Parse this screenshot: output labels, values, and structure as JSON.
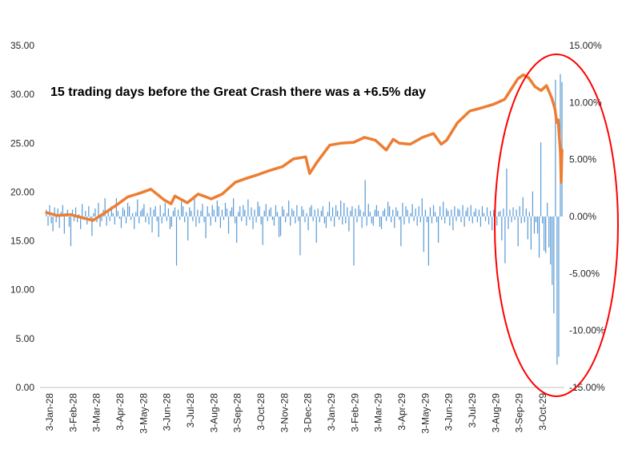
{
  "chart_data": {
    "type": "line",
    "title": "",
    "annotation": "15 trading days before the Great Crash there was a +6.5% day",
    "xlabel": "",
    "x_tick_labels": [
      "3-Jan-28",
      "3-Feb-28",
      "3-Mar-28",
      "3-Apr-28",
      "3-May-28",
      "3-Jun-28",
      "3-Jul-28",
      "3-Aug-28",
      "3-Sep-28",
      "3-Oct-28",
      "3-Nov-28",
      "3-Dec-28",
      "3-Jan-29",
      "3-Feb-29",
      "3-Mar-29",
      "3-Apr-29",
      "3-May-29",
      "3-Jun-29",
      "3-Jul-29",
      "3-Aug-29",
      "3-Sep-29",
      "3-Oct-29"
    ],
    "y_left": {
      "label": "",
      "lim": [
        0,
        35
      ],
      "tick_labels": [
        "0.00",
        "5.00",
        "10.00",
        "15.00",
        "20.00",
        "25.00",
        "30.00",
        "35.00"
      ]
    },
    "y_right": {
      "label": "",
      "lim": [
        -15,
        15
      ],
      "unit": "%",
      "tick_labels": [
        "-15.00%",
        "-10.00%",
        "-5.00%",
        "0.00%",
        "5.00%",
        "10.00%",
        "15.00%"
      ]
    },
    "grid": false,
    "legend": "none",
    "series": [
      {
        "axis": "left",
        "render": "line",
        "color": "#ED7D31",
        "x": [
          "1928-01-03",
          "1928-01-17",
          "1928-02-03",
          "1928-02-17",
          "1928-03-03",
          "1928-03-17",
          "1928-04-03",
          "1928-04-17",
          "1928-05-03",
          "1928-05-17",
          "1928-06-03",
          "1928-06-12",
          "1928-06-17",
          "1928-07-03",
          "1928-07-17",
          "1928-08-03",
          "1928-08-17",
          "1928-09-03",
          "1928-09-17",
          "1928-10-03",
          "1928-10-17",
          "1928-11-03",
          "1928-11-17",
          "1928-12-03",
          "1928-12-08",
          "1928-12-17",
          "1929-01-03",
          "1929-01-17",
          "1929-02-03",
          "1929-02-17",
          "1929-03-03",
          "1929-03-17",
          "1929-03-26",
          "1929-04-03",
          "1929-04-17",
          "1929-05-03",
          "1929-05-17",
          "1929-05-27",
          "1929-06-03",
          "1929-06-17",
          "1929-07-03",
          "1929-07-17",
          "1929-08-03",
          "1929-08-17",
          "1929-09-03",
          "1929-09-10",
          "1929-09-17",
          "1929-09-25",
          "1929-10-03",
          "1929-10-10",
          "1929-10-17",
          "1929-10-21",
          "1929-10-23",
          "1929-10-24",
          "1929-10-25",
          "1929-10-28",
          "1929-10-29",
          "1929-10-30"
        ],
        "y": [
          17.9,
          17.6,
          17.7,
          17.4,
          17.1,
          17.8,
          18.7,
          19.5,
          19.9,
          20.3,
          19.2,
          18.8,
          19.6,
          18.9,
          19.8,
          19.3,
          19.8,
          21.0,
          21.4,
          21.8,
          22.2,
          22.6,
          23.4,
          23.6,
          21.9,
          23.0,
          24.8,
          25.0,
          25.1,
          25.6,
          25.3,
          24.3,
          25.4,
          25.0,
          24.9,
          25.6,
          26.0,
          24.9,
          25.3,
          27.1,
          28.3,
          28.6,
          29.0,
          29.5,
          31.6,
          32.0,
          31.7,
          30.8,
          30.4,
          30.9,
          29.6,
          28.5,
          27.3,
          27.1,
          27.4,
          24.0,
          21.0,
          24.3
        ]
      },
      {
        "axis": "right",
        "render": "bar",
        "color": "#5B9BD5",
        "unit": "%",
        "values": [
          0.6,
          -0.8,
          1.0,
          -0.6,
          -1.3,
          0.8,
          -0.5,
          0.7,
          -1.0,
          0.4,
          1.0,
          -1.5,
          0.3,
          0.6,
          -0.9,
          -2.6,
          0.6,
          -0.4,
          0.8,
          -0.5,
          0.2,
          -1.1,
          1.1,
          -0.3,
          0.5,
          -0.7,
          0.9,
          -0.3,
          -1.7,
          0.3,
          0.7,
          -0.5,
          1.2,
          -0.9,
          -0.4,
          0.6,
          1.6,
          -0.8,
          0.4,
          -0.4,
          0.9,
          0.3,
          -0.7,
          1.6,
          0.5,
          -0.2,
          -1.0,
          0.8,
          0.6,
          -0.6,
          1.2,
          0.9,
          -0.3,
          0.3,
          -1.1,
          0.4,
          1.5,
          -0.6,
          0.5,
          0.7,
          1.1,
          -0.5,
          0.3,
          -0.7,
          0.8,
          -1.4,
          0.6,
          0.9,
          -0.4,
          -1.8,
          1.0,
          -0.6,
          0.3,
          1.2,
          -0.4,
          0.7,
          -1.1,
          -0.9,
          0.5,
          0.8,
          -4.3,
          0.6,
          -0.3,
          1.3,
          0.9,
          -0.5,
          0.4,
          -2.1,
          0.8,
          0.5,
          -0.4,
          1.7,
          -0.9,
          0.6,
          -0.6,
          0.5,
          1.1,
          -0.5,
          -1.9,
          0.9,
          0.3,
          -0.8,
          1.0,
          0.6,
          -0.5,
          1.4,
          0.9,
          -1.0,
          0.6,
          -0.3,
          1.2,
          0.7,
          -1.5,
          0.5,
          0.8,
          1.6,
          -0.6,
          -2.3,
          0.4,
          0.9,
          -0.4,
          1.0,
          0.6,
          -0.8,
          1.5,
          -0.3,
          0.8,
          -1.1,
          0.6,
          -0.5,
          1.3,
          0.9,
          -0.7,
          -2.5,
          0.5,
          1.1,
          -0.4,
          0.6,
          0.8,
          -0.3,
          -0.8,
          1.0,
          0.4,
          -1.8,
          -1.7,
          0.9,
          0.6,
          -0.5,
          0.3,
          1.4,
          -0.8,
          0.7,
          0.5,
          -0.6,
          1.0,
          -0.4,
          -3.4,
          0.9,
          0.6,
          -0.5,
          0.3,
          -1.2,
          0.8,
          1.0,
          -0.4,
          0.6,
          -2.3,
          0.7,
          -0.5,
          0.5,
          0.9,
          -0.6,
          -1.0,
          0.4,
          1.3,
          -0.4,
          0.8,
          -0.9,
          1.0,
          0.5,
          -0.3,
          1.4,
          -0.7,
          1.2,
          -0.6,
          0.8,
          -1.3,
          0.5,
          0.9,
          -4.3,
          0.7,
          -0.5,
          1.0,
          0.6,
          -1.0,
          0.4,
          3.2,
          -0.8,
          1.1,
          0.4,
          -0.6,
          -0.8,
          0.6,
          1.0,
          0.5,
          -0.9,
          -1.1,
          0.5,
          0.7,
          -0.4,
          1.3,
          0.9,
          -0.5,
          0.6,
          -1.0,
          0.8,
          0.5,
          -0.3,
          -2.6,
          1.2,
          -0.7,
          0.9,
          0.6,
          -0.6,
          0.3,
          1.1,
          -0.4,
          0.7,
          -0.8,
          0.9,
          -0.5,
          1.6,
          -3.1,
          0.6,
          -0.5,
          -4.3,
          0.8,
          -0.6,
          1.0,
          0.4,
          -0.5,
          -2.3,
          0.9,
          -0.3,
          1.3,
          -0.6,
          0.7,
          0.5,
          -0.8,
          0.6,
          -1.2,
          0.9,
          -0.4,
          0.7,
          0.6,
          -0.5,
          1.0,
          -0.9,
          0.5,
          0.8,
          -0.4,
          1.0,
          -0.6,
          0.4,
          0.7,
          -0.5,
          0.6,
          -0.9,
          0.9,
          0.3,
          -0.4,
          0.8,
          -0.7,
          0.5,
          -1.2,
          0.6,
          1.1,
          -0.8,
          0.4,
          0.5,
          -2.1,
          0.7,
          -4.1,
          4.2,
          -1.1,
          0.6,
          -0.5,
          0.8,
          -0.3,
          0.6,
          -2.6,
          0.9,
          -0.6,
          1.7,
          -0.5,
          0.7,
          -2.0,
          0.4,
          -2.9,
          2.2,
          -1.5,
          -0.5,
          -1.5,
          -3.6,
          6.5,
          -0.6,
          -3.0,
          -3.2,
          1.2,
          -2.7,
          -4.2,
          -6.0,
          -8.5,
          12.0,
          -13.0,
          -12.3,
          12.5,
          11.8
        ]
      }
    ],
    "highlight": {
      "shape": "ellipse",
      "color": "#FF0000"
    }
  }
}
